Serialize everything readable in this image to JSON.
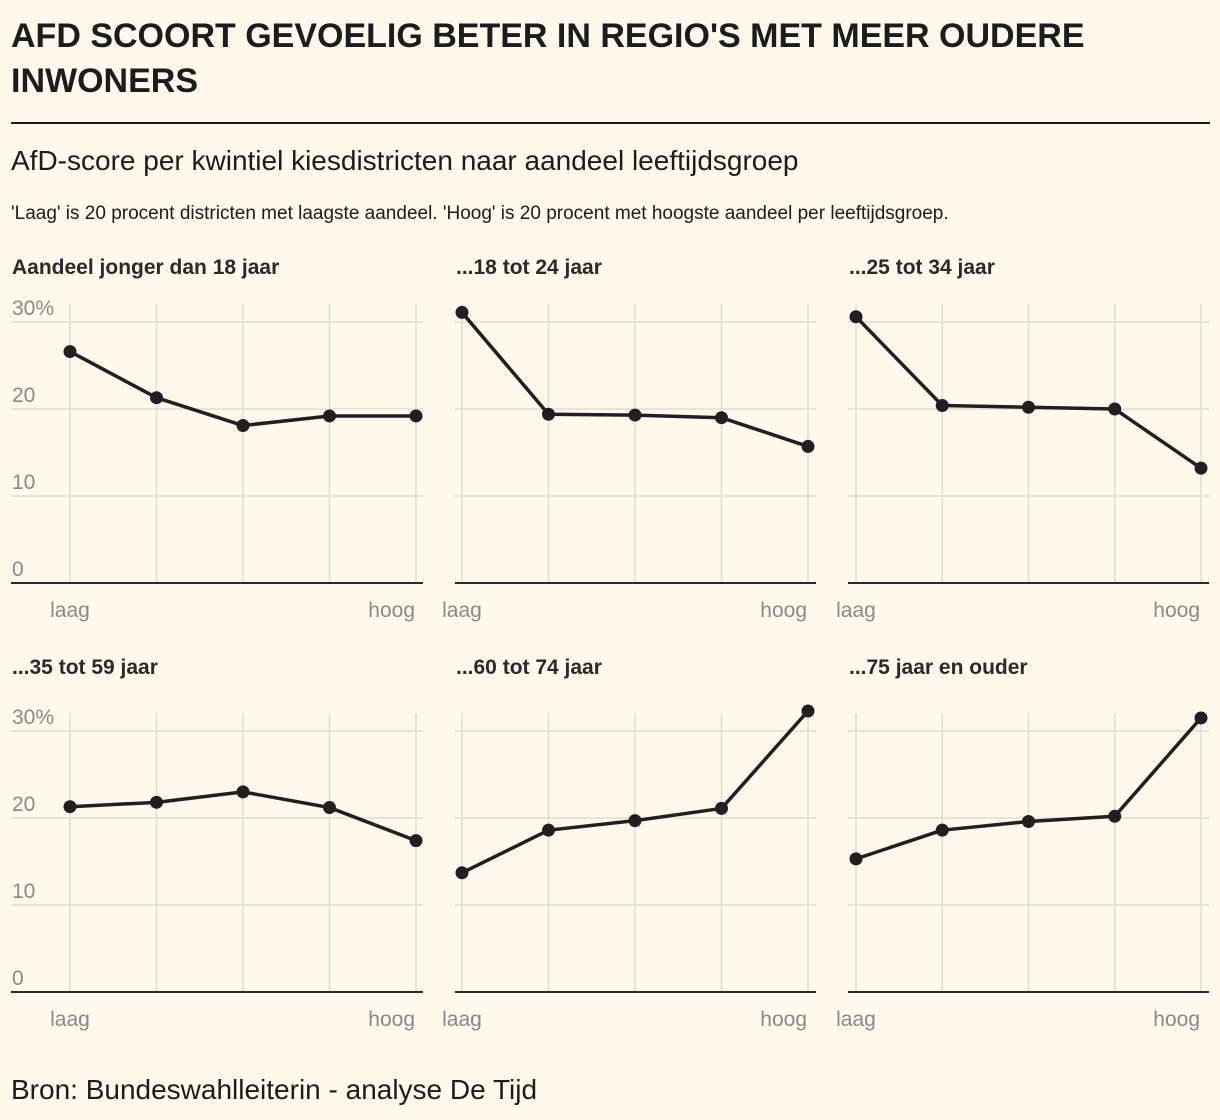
{
  "title": "AFD SCOORT GEVOELIG BETER IN REGIO'S MET MEER OUDERE INWONERS",
  "subtitle": "AfD-score per kwintiel kiesdistricten naar aandeel leeftijdsgroep",
  "note": "'Laag' is 20 procent districten met laagste aandeel. 'Hoog' is 20 procent met hoogste aandeel per leeftijdsgroep.",
  "source": "Bron: Bundeswahlleiterin - analyse De Tijd",
  "colors": {
    "background": "#fff8ec",
    "line": "#231f20",
    "grid": "#e2dcd2"
  },
  "chart_data": [
    {
      "type": "line",
      "title": "Aandeel jonger dan 18 jaar",
      "categories": [
        "laag",
        "",
        "",
        "",
        "hoog"
      ],
      "values": [
        26.6,
        21.3,
        18.1,
        19.2,
        19.2
      ],
      "yticks": [
        "0",
        "10",
        "20",
        "30%"
      ],
      "ylim": [
        0,
        30
      ],
      "grid": true
    },
    {
      "type": "line",
      "title": "...18 tot 24 jaar",
      "categories": [
        "laag",
        "",
        "",
        "",
        "hoog"
      ],
      "values": [
        31.1,
        19.4,
        19.3,
        19.0,
        15.7
      ],
      "yticks": [
        "",
        "",
        "",
        ""
      ],
      "ylim": [
        0,
        30
      ],
      "grid": true
    },
    {
      "type": "line",
      "title": "...25 tot 34 jaar",
      "categories": [
        "laag",
        "",
        "",
        "",
        "hoog"
      ],
      "values": [
        30.6,
        20.4,
        20.2,
        20.0,
        13.2
      ],
      "yticks": [
        "",
        "",
        "",
        ""
      ],
      "ylim": [
        0,
        30
      ],
      "grid": true
    },
    {
      "type": "line",
      "title": "...35 tot 59 jaar",
      "categories": [
        "laag",
        "",
        "",
        "",
        "hoog"
      ],
      "values": [
        21.3,
        21.8,
        23.0,
        21.2,
        17.4
      ],
      "yticks": [
        "0",
        "10",
        "20",
        "30%"
      ],
      "ylim": [
        0,
        30
      ],
      "grid": true
    },
    {
      "type": "line",
      "title": "...60 tot 74 jaar",
      "categories": [
        "laag",
        "",
        "",
        "",
        "hoog"
      ],
      "values": [
        13.7,
        18.6,
        19.7,
        21.1,
        32.3
      ],
      "yticks": [
        "",
        "",
        "",
        ""
      ],
      "ylim": [
        0,
        30
      ],
      "grid": true
    },
    {
      "type": "line",
      "title": "...75 jaar en ouder",
      "categories": [
        "laag",
        "",
        "",
        "",
        "hoog"
      ],
      "values": [
        15.3,
        18.6,
        19.6,
        20.2,
        31.5
      ],
      "yticks": [
        "",
        "",
        "",
        ""
      ],
      "ylim": [
        0,
        30
      ],
      "grid": true
    }
  ]
}
